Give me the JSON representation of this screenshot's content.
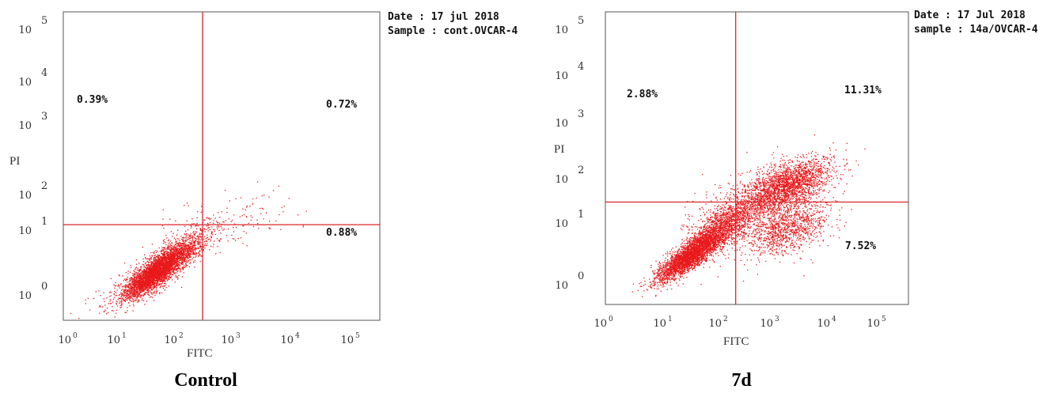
{
  "chart_data": [
    {
      "type": "scatter",
      "caption": "Control",
      "xlabel": "FITC",
      "ylabel": "PI",
      "meta_lines": [
        "Date : 17 jul 2018",
        "Sample : cont.OVCAR-4"
      ],
      "x_log_range": [
        0,
        5
      ],
      "y_log_range": [
        0,
        5
      ],
      "x_ticks": [
        {
          "base": "10",
          "exp": "0"
        },
        {
          "base": "10",
          "exp": "1"
        },
        {
          "base": "10",
          "exp": "2"
        },
        {
          "base": "10",
          "exp": "3"
        },
        {
          "base": "10",
          "exp": "4"
        },
        {
          "base": "10",
          "exp": "5"
        }
      ],
      "y_ticks": [
        {
          "base": "10",
          "exp": "0"
        },
        {
          "base": "10",
          "exp": "1"
        },
        {
          "base": "10",
          "exp": "2"
        },
        {
          "base": "10",
          "exp": "3"
        },
        {
          "base": "10",
          "exp": "4"
        },
        {
          "base": "10",
          "exp": "5"
        }
      ],
      "gate_log": {
        "x": 2.2,
        "y": 1.55
      },
      "quadrants": {
        "upper_left": "0.39%",
        "upper_right": "0.72%",
        "lower_right": "0.88%"
      },
      "point_color": "#e8191c",
      "gate_color": "#d9262c",
      "clusters": [
        {
          "mx": 1.45,
          "my": 0.78,
          "sx": 0.24,
          "sy": 0.2,
          "rho": 0.82,
          "n": 3200
        },
        {
          "mx": 1.85,
          "my": 1.1,
          "sx": 0.3,
          "sy": 0.22,
          "rho": 0.75,
          "n": 900
        },
        {
          "mx": 2.7,
          "my": 1.65,
          "sx": 0.45,
          "sy": 0.22,
          "rho": 0.3,
          "n": 120
        },
        {
          "mx": 1.2,
          "my": 0.6,
          "sx": 0.35,
          "sy": 0.25,
          "rho": 0.7,
          "n": 300
        }
      ]
    },
    {
      "type": "scatter",
      "caption": "7d",
      "xlabel": "FITC",
      "ylabel": "PI",
      "meta_lines": [
        "Date : 17 Jul 2018",
        "sample : 14a/OVCAR-4"
      ],
      "x_log_range": [
        0,
        5
      ],
      "y_log_range": [
        0,
        5
      ],
      "x_ticks": [
        {
          "base": "10",
          "exp": "0"
        },
        {
          "base": "10",
          "exp": "1"
        },
        {
          "base": "10",
          "exp": "2"
        },
        {
          "base": "10",
          "exp": "3"
        },
        {
          "base": "10",
          "exp": "4"
        },
        {
          "base": "10",
          "exp": "5"
        }
      ],
      "y_ticks": [
        {
          "base": "10",
          "exp": "0"
        },
        {
          "base": "10",
          "exp": "1"
        },
        {
          "base": "10",
          "exp": "2"
        },
        {
          "base": "10",
          "exp": "3"
        },
        {
          "base": "10",
          "exp": "4"
        },
        {
          "base": "10",
          "exp": "5"
        }
      ],
      "gate_log": {
        "x": 2.15,
        "y": 1.75
      },
      "quadrants": {
        "upper_left": "2.88%",
        "upper_right": "11.31%",
        "lower_right": "7.52%"
      },
      "point_color": "#e8191c",
      "gate_color": "#d9262c",
      "clusters": [
        {
          "mx": 1.4,
          "my": 0.85,
          "sx": 0.28,
          "sy": 0.22,
          "rho": 0.85,
          "n": 3000
        },
        {
          "mx": 1.95,
          "my": 1.35,
          "sx": 0.3,
          "sy": 0.25,
          "rho": 0.7,
          "n": 1200
        },
        {
          "mx": 3.0,
          "my": 2.05,
          "sx": 0.35,
          "sy": 0.22,
          "rho": 0.6,
          "n": 1800
        },
        {
          "mx": 3.0,
          "my": 1.3,
          "sx": 0.35,
          "sy": 0.25,
          "rho": 0.5,
          "n": 1000
        },
        {
          "mx": 2.5,
          "my": 1.7,
          "sx": 0.5,
          "sy": 0.35,
          "rho": 0.5,
          "n": 900
        }
      ]
    }
  ]
}
